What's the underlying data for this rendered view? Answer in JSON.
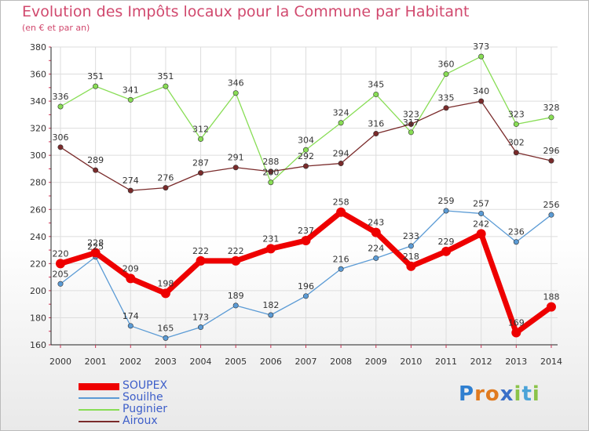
{
  "title": "Evolution des Impôts locaux pour la Commune par Habitant",
  "subtitle": "(en € et par an)",
  "logo": {
    "text": "Proxiti",
    "letters": [
      "P",
      "r",
      "o",
      "x",
      "i",
      "t",
      "i"
    ]
  },
  "chart_data": {
    "type": "line",
    "title": "Evolution des Impôts locaux pour la Commune par Habitant",
    "subtitle": "(en € et par an)",
    "x": [
      "2000",
      "2001",
      "2002",
      "2003",
      "2004",
      "2005",
      "2006",
      "2007",
      "2008",
      "2009",
      "2010",
      "2011",
      "2012",
      "2013",
      "2014"
    ],
    "ylim": [
      160,
      380
    ],
    "yticks": [
      160,
      180,
      200,
      220,
      240,
      260,
      280,
      300,
      320,
      340,
      360,
      380
    ],
    "grid": true,
    "legend_position": "bottom-left",
    "series": [
      {
        "name": "SOUPEX",
        "color": "#ee0000",
        "emphasis": true,
        "values": [
          220,
          228,
          209,
          198,
          222,
          222,
          231,
          237,
          258,
          243,
          218,
          229,
          242,
          169,
          188
        ],
        "labels": [
          "220",
          "228",
          "209",
          "198",
          "222",
          "222",
          "231",
          "237",
          "258",
          "243",
          "218",
          "229",
          "242",
          "169",
          "188"
        ]
      },
      {
        "name": "Souilhe",
        "color": "#5b9bd5",
        "values": [
          205,
          225,
          174,
          165,
          173,
          189,
          182,
          196,
          216,
          224,
          233,
          259,
          257,
          236,
          256
        ],
        "labels": [
          "205",
          "225",
          "174",
          "165",
          "173",
          "189",
          "182",
          "196",
          "216",
          "224",
          "233",
          "259",
          "257",
          "236",
          "256"
        ]
      },
      {
        "name": "Puginier",
        "color": "#88dd55",
        "values": [
          336,
          351,
          341,
          351,
          312,
          346,
          280,
          304,
          324,
          345,
          317,
          360,
          373,
          323,
          328
        ],
        "labels": [
          "336",
          "351",
          "341",
          "351",
          "312",
          "346",
          "280",
          "304",
          "324",
          "345",
          "317",
          "360",
          "373",
          "323",
          "328"
        ]
      },
      {
        "name": "Airoux",
        "color": "#7a2b2b",
        "values": [
          306,
          289,
          274,
          276,
          287,
          291,
          288,
          292,
          294,
          316,
          323,
          335,
          340,
          302,
          296
        ],
        "labels": [
          "306",
          "289",
          "274",
          "276",
          "287",
          "291",
          "288",
          "292",
          "294",
          "316",
          "323",
          "335",
          "340",
          "302",
          "296"
        ]
      }
    ]
  }
}
